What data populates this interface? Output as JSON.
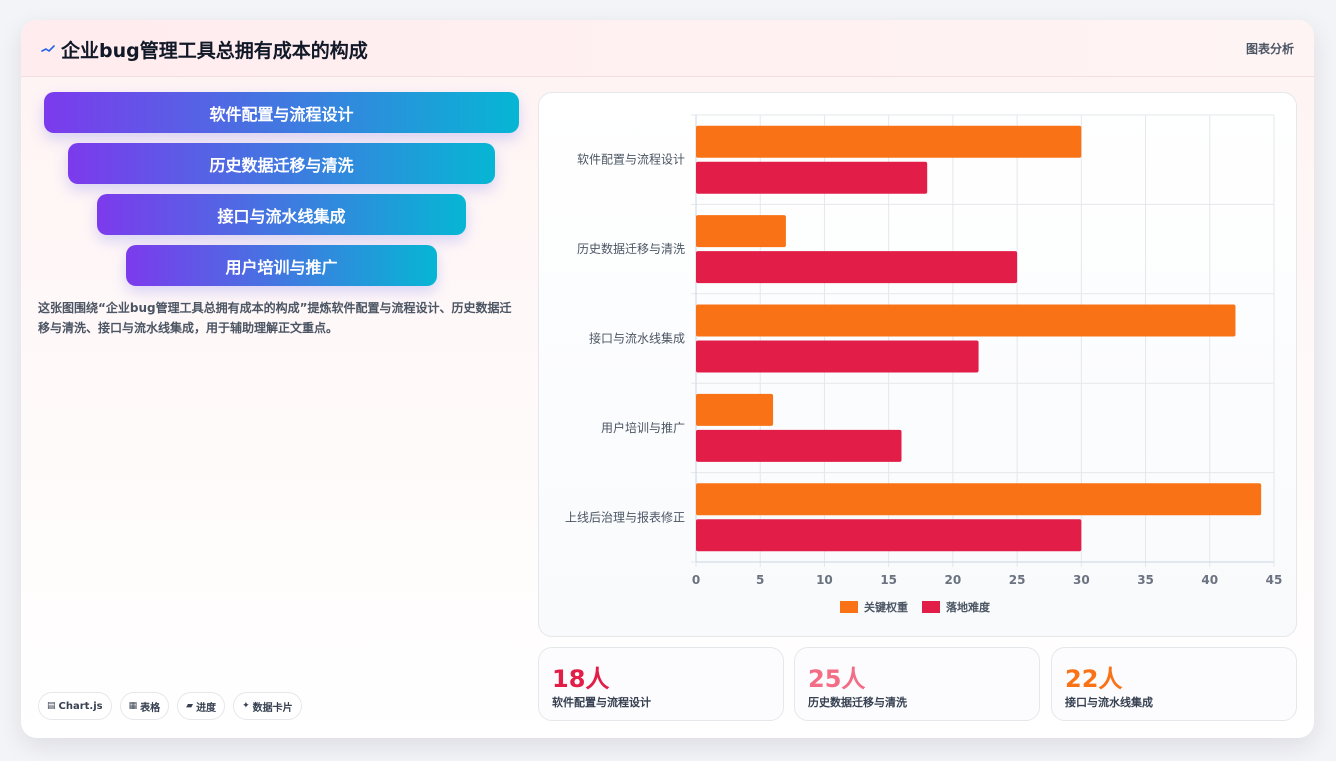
{
  "header": {
    "title": "企业bug管理工具总拥有成本的构成",
    "action_label": "图表分析"
  },
  "funnel": {
    "items": [
      "软件配置与流程设计",
      "历史数据迁移与清洗",
      "接口与流水线集成",
      "用户培训与推广"
    ]
  },
  "description": "这张图围绕“企业bug管理工具总拥有成本的构成”提炼软件配置与流程设计、历史数据迁移与清洗、接口与流水线集成，用于辅助理解正文重点。",
  "chips": [
    {
      "icon": "▤",
      "label": "Chart.js"
    },
    {
      "icon": "▦",
      "label": "表格"
    },
    {
      "icon": "▰",
      "label": "进度"
    },
    {
      "icon": "✦",
      "label": "数据卡片"
    }
  ],
  "chart_data": {
    "type": "bar",
    "orientation": "horizontal",
    "categories": [
      "软件配置与流程设计",
      "历史数据迁移与清洗",
      "接口与流水线集成",
      "用户培训与推广",
      "上线后治理与报表修正"
    ],
    "series": [
      {
        "name": "关键权重",
        "values": [
          30,
          7,
          42,
          6,
          44
        ],
        "color": "#f97316"
      },
      {
        "name": "落地难度",
        "values": [
          18,
          25,
          22,
          16,
          30
        ],
        "color": "#e11d48"
      }
    ],
    "xlim": [
      0,
      45
    ],
    "xticks": [
      0,
      5,
      10,
      15,
      20,
      25,
      30,
      35,
      40,
      45
    ],
    "grid": true,
    "legend": "bottom"
  },
  "stats": [
    {
      "value": "18人",
      "label": "软件配置与流程设计",
      "color": "#e11d48"
    },
    {
      "value": "25人",
      "label": "历史数据迁移与清洗",
      "color": "#f26d85"
    },
    {
      "value": "22人",
      "label": "接口与流水线集成",
      "color": "#f97316"
    }
  ]
}
